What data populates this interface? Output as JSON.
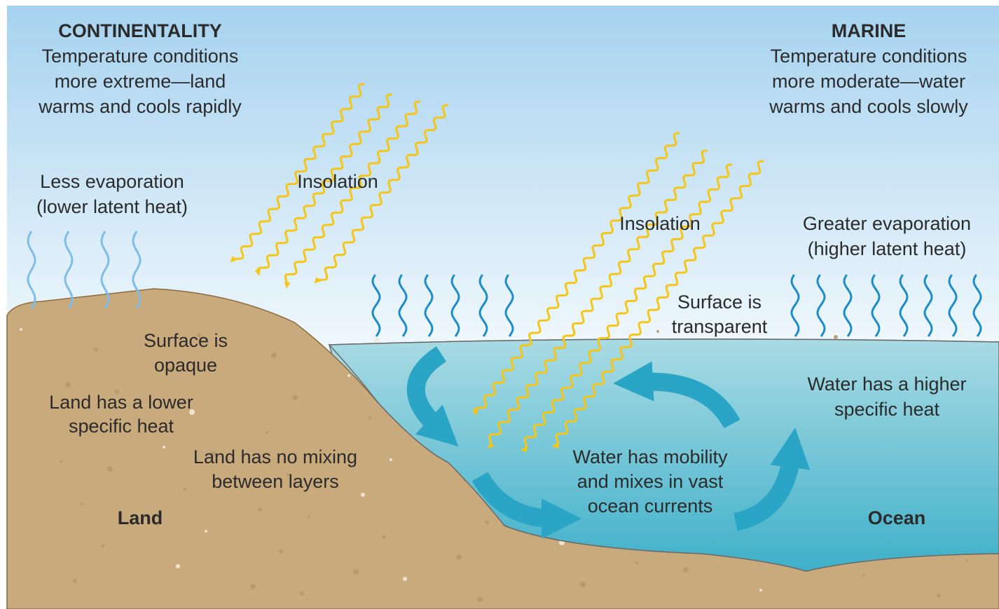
{
  "continentality": {
    "title": "CONTINENTALITY",
    "lines": [
      "Temperature conditions",
      "more extreme—land",
      "warms and cools rapidly"
    ]
  },
  "marine": {
    "title": "MARINE",
    "lines": [
      "Temperature conditions",
      "more moderate—water",
      "warms and cools slowly"
    ]
  },
  "land_evaporation": [
    "Less evaporation",
    "(lower latent heat)"
  ],
  "ocean_evaporation": [
    "Greater evaporation",
    "(higher latent heat)"
  ],
  "insolation_land": "Insolation",
  "insolation_ocean": "Insolation",
  "land_surface": [
    "Surface is",
    "opaque"
  ],
  "ocean_surface": [
    "Surface is",
    "transparent"
  ],
  "land_specific_heat": [
    "Land has a lower",
    "specific heat"
  ],
  "land_mixing": [
    "Land has no mixing",
    "between layers"
  ],
  "water_specific_heat": [
    "Water has a higher",
    "specific heat"
  ],
  "water_mixing": [
    "Water has mobility",
    "and mixes in vast",
    "ocean currents"
  ],
  "land_label": "Land",
  "ocean_label": "Ocean"
}
